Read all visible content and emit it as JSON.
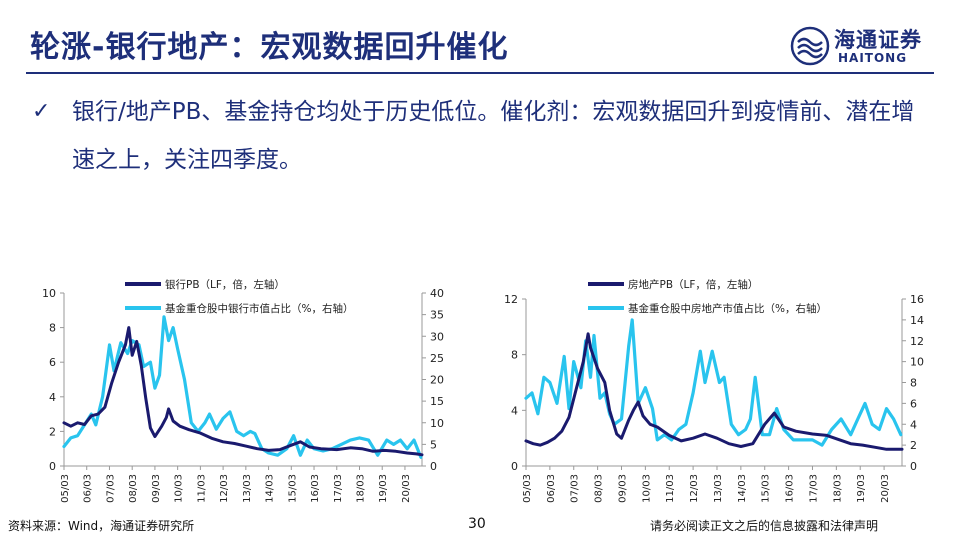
{
  "header": {
    "title": "轮涨-银行地产：宏观数据回升催化",
    "logo_cn": "海通证券",
    "logo_en": "HAITONG"
  },
  "bullet": {
    "icon": "check-icon",
    "text": "银行/地产PB、基金持仓均处于历史低位。催化剂：宏观数据回升到疫情前、潜在增速之上，关注四季度。"
  },
  "footer": {
    "source": "资料来源：Wind，海通证券研究所",
    "page": "30",
    "disclaimer": "请务必阅读正文之后的信息披露和法律声明"
  },
  "colors": {
    "dark_series": "#1a1a6e",
    "light_series": "#29c4ee",
    "title": "#1e2f7a"
  },
  "chart_data": [
    {
      "type": "line",
      "categories": [
        "05/03",
        "06/03",
        "07/03",
        "08/03",
        "09/03",
        "10/03",
        "11/03",
        "12/03",
        "13/03",
        "14/03",
        "15/03",
        "16/03",
        "17/03",
        "18/03",
        "19/03",
        "20/03"
      ],
      "x_start": 2005.0,
      "x_end": 2020.75,
      "ylim": [
        0,
        10
      ],
      "y2lim": [
        0,
        40
      ],
      "yticks": [
        0,
        2,
        4,
        6,
        8,
        10
      ],
      "y2ticks": [
        0,
        5,
        10,
        15,
        20,
        25,
        30,
        35,
        40
      ],
      "series": [
        {
          "name": "银行PB（LF，倍，左轴）",
          "axis": "left",
          "points": [
            [
              2005.0,
              2.5
            ],
            [
              2005.3,
              2.3
            ],
            [
              2005.6,
              2.5
            ],
            [
              2005.9,
              2.4
            ],
            [
              2006.2,
              2.9
            ],
            [
              2006.5,
              3.0
            ],
            [
              2006.8,
              3.4
            ],
            [
              2007.1,
              4.8
            ],
            [
              2007.4,
              6.0
            ],
            [
              2007.7,
              7.0
            ],
            [
              2007.85,
              8.0
            ],
            [
              2008.0,
              6.4
            ],
            [
              2008.2,
              7.2
            ],
            [
              2008.4,
              5.8
            ],
            [
              2008.6,
              3.9
            ],
            [
              2008.8,
              2.2
            ],
            [
              2009.0,
              1.7
            ],
            [
              2009.3,
              2.3
            ],
            [
              2009.5,
              2.8
            ],
            [
              2009.6,
              3.3
            ],
            [
              2009.8,
              2.6
            ],
            [
              2010.1,
              2.3
            ],
            [
              2010.5,
              2.1
            ],
            [
              2011.0,
              1.9
            ],
            [
              2011.5,
              1.6
            ],
            [
              2012.0,
              1.4
            ],
            [
              2012.5,
              1.3
            ],
            [
              2013.0,
              1.15
            ],
            [
              2013.5,
              1.0
            ],
            [
              2014.0,
              0.9
            ],
            [
              2014.5,
              0.95
            ],
            [
              2015.0,
              1.2
            ],
            [
              2015.4,
              1.4
            ],
            [
              2015.8,
              1.1
            ],
            [
              2016.3,
              1.0
            ],
            [
              2017.0,
              0.95
            ],
            [
              2017.6,
              1.05
            ],
            [
              2018.1,
              1.0
            ],
            [
              2018.6,
              0.85
            ],
            [
              2019.1,
              0.9
            ],
            [
              2019.6,
              0.85
            ],
            [
              2020.1,
              0.75
            ],
            [
              2020.5,
              0.7
            ],
            [
              2020.75,
              0.65
            ]
          ]
        },
        {
          "name": "基金重仓股中银行市值占比（%，右轴）",
          "axis": "right",
          "points": [
            [
              2005.0,
              4.5
            ],
            [
              2005.3,
              6.5
            ],
            [
              2005.6,
              7.0
            ],
            [
              2005.9,
              9.5
            ],
            [
              2006.2,
              12.0
            ],
            [
              2006.4,
              9.5
            ],
            [
              2006.7,
              16.0
            ],
            [
              2007.0,
              28.0
            ],
            [
              2007.2,
              22.0
            ],
            [
              2007.5,
              28.5
            ],
            [
              2007.8,
              26.0
            ],
            [
              2008.0,
              29.0
            ],
            [
              2008.3,
              28.0
            ],
            [
              2008.5,
              23.0
            ],
            [
              2008.8,
              24.0
            ],
            [
              2009.0,
              18.0
            ],
            [
              2009.2,
              21.0
            ],
            [
              2009.4,
              34.5
            ],
            [
              2009.6,
              29.0
            ],
            [
              2009.8,
              32.0
            ],
            [
              2010.0,
              27.0
            ],
            [
              2010.3,
              20.0
            ],
            [
              2010.6,
              10.0
            ],
            [
              2010.9,
              8.0
            ],
            [
              2011.2,
              10.0
            ],
            [
              2011.4,
              12.0
            ],
            [
              2011.7,
              8.5
            ],
            [
              2012.0,
              11.0
            ],
            [
              2012.3,
              12.5
            ],
            [
              2012.6,
              8.0
            ],
            [
              2012.9,
              7.0
            ],
            [
              2013.2,
              8.0
            ],
            [
              2013.4,
              7.5
            ],
            [
              2013.7,
              4.0
            ],
            [
              2014.0,
              3.0
            ],
            [
              2014.4,
              2.5
            ],
            [
              2014.8,
              4.0
            ],
            [
              2015.1,
              7.0
            ],
            [
              2015.4,
              2.5
            ],
            [
              2015.7,
              6.0
            ],
            [
              2016.0,
              4.0
            ],
            [
              2016.4,
              3.5
            ],
            [
              2016.8,
              4.0
            ],
            [
              2017.2,
              5.0
            ],
            [
              2017.6,
              6.0
            ],
            [
              2018.0,
              6.5
            ],
            [
              2018.4,
              6.0
            ],
            [
              2018.8,
              2.5
            ],
            [
              2019.2,
              6.0
            ],
            [
              2019.5,
              5.0
            ],
            [
              2019.8,
              6.0
            ],
            [
              2020.1,
              4.0
            ],
            [
              2020.4,
              6.0
            ],
            [
              2020.7,
              2.0
            ]
          ]
        }
      ]
    },
    {
      "type": "line",
      "categories": [
        "05/03",
        "06/03",
        "07/03",
        "08/03",
        "09/03",
        "10/03",
        "11/03",
        "12/03",
        "13/03",
        "14/03",
        "15/03",
        "16/03",
        "17/03",
        "18/03",
        "19/03",
        "20/03"
      ],
      "x_start": 2005.0,
      "x_end": 2020.75,
      "ylim": [
        0,
        12
      ],
      "y2lim": [
        0,
        16
      ],
      "yticks": [
        0,
        4,
        8,
        12
      ],
      "y2ticks": [
        0,
        2,
        4,
        6,
        8,
        10,
        12,
        14,
        16
      ],
      "series": [
        {
          "name": "房地产PB（LF，倍，左轴）",
          "axis": "left",
          "points": [
            [
              2005.0,
              1.8
            ],
            [
              2005.3,
              1.6
            ],
            [
              2005.6,
              1.5
            ],
            [
              2005.9,
              1.7
            ],
            [
              2006.2,
              2.0
            ],
            [
              2006.5,
              2.5
            ],
            [
              2006.8,
              3.5
            ],
            [
              2007.1,
              5.5
            ],
            [
              2007.4,
              7.5
            ],
            [
              2007.6,
              9.5
            ],
            [
              2007.7,
              8.5
            ],
            [
              2008.0,
              7.0
            ],
            [
              2008.3,
              6.0
            ],
            [
              2008.5,
              4.0
            ],
            [
              2008.8,
              2.3
            ],
            [
              2009.0,
              2.0
            ],
            [
              2009.3,
              3.3
            ],
            [
              2009.5,
              4.0
            ],
            [
              2009.7,
              4.6
            ],
            [
              2009.9,
              3.6
            ],
            [
              2010.2,
              3.0
            ],
            [
              2010.5,
              2.8
            ],
            [
              2011.0,
              2.2
            ],
            [
              2011.5,
              1.8
            ],
            [
              2012.0,
              2.0
            ],
            [
              2012.5,
              2.3
            ],
            [
              2013.0,
              2.0
            ],
            [
              2013.5,
              1.6
            ],
            [
              2014.0,
              1.4
            ],
            [
              2014.5,
              1.6
            ],
            [
              2015.0,
              3.0
            ],
            [
              2015.4,
              3.8
            ],
            [
              2015.8,
              2.8
            ],
            [
              2016.3,
              2.5
            ],
            [
              2017.0,
              2.3
            ],
            [
              2017.6,
              2.2
            ],
            [
              2018.1,
              1.9
            ],
            [
              2018.6,
              1.6
            ],
            [
              2019.1,
              1.5
            ],
            [
              2019.6,
              1.35
            ],
            [
              2020.1,
              1.2
            ],
            [
              2020.75,
              1.2
            ]
          ]
        },
        {
          "name": "基金重仓股中房地产市值占比（%，右轴）",
          "axis": "right",
          "points": [
            [
              2005.0,
              6.5
            ],
            [
              2005.25,
              7.0
            ],
            [
              2005.5,
              5.0
            ],
            [
              2005.75,
              8.5
            ],
            [
              2006.0,
              8.0
            ],
            [
              2006.3,
              6.0
            ],
            [
              2006.6,
              10.5
            ],
            [
              2006.8,
              5.5
            ],
            [
              2007.0,
              10.0
            ],
            [
              2007.3,
              7.5
            ],
            [
              2007.5,
              12.0
            ],
            [
              2007.7,
              8.5
            ],
            [
              2007.85,
              12.5
            ],
            [
              2008.1,
              6.5
            ],
            [
              2008.3,
              7.0
            ],
            [
              2008.5,
              5.0
            ],
            [
              2008.7,
              4.0
            ],
            [
              2009.0,
              4.5
            ],
            [
              2009.3,
              11.5
            ],
            [
              2009.45,
              14.0
            ],
            [
              2009.7,
              6.0
            ],
            [
              2010.0,
              7.5
            ],
            [
              2010.3,
              5.5
            ],
            [
              2010.5,
              2.5
            ],
            [
              2010.8,
              3.0
            ],
            [
              2011.1,
              2.5
            ],
            [
              2011.4,
              3.5
            ],
            [
              2011.7,
              4.0
            ],
            [
              2012.0,
              7.0
            ],
            [
              2012.3,
              11.0
            ],
            [
              2012.5,
              8.0
            ],
            [
              2012.8,
              11.0
            ],
            [
              2013.1,
              8.0
            ],
            [
              2013.3,
              8.5
            ],
            [
              2013.6,
              4.0
            ],
            [
              2013.9,
              3.0
            ],
            [
              2014.2,
              3.5
            ],
            [
              2014.4,
              4.5
            ],
            [
              2014.6,
              8.5
            ],
            [
              2014.9,
              3.0
            ],
            [
              2015.2,
              3.0
            ],
            [
              2015.5,
              5.5
            ],
            [
              2015.8,
              3.5
            ],
            [
              2016.2,
              2.5
            ],
            [
              2016.6,
              2.5
            ],
            [
              2017.0,
              2.5
            ],
            [
              2017.4,
              2.0
            ],
            [
              2017.8,
              3.5
            ],
            [
              2018.2,
              4.5
            ],
            [
              2018.6,
              3.0
            ],
            [
              2018.9,
              4.5
            ],
            [
              2019.2,
              6.0
            ],
            [
              2019.5,
              4.0
            ],
            [
              2019.8,
              3.5
            ],
            [
              2020.1,
              5.5
            ],
            [
              2020.4,
              4.5
            ],
            [
              2020.7,
              3.0
            ]
          ]
        }
      ]
    }
  ]
}
